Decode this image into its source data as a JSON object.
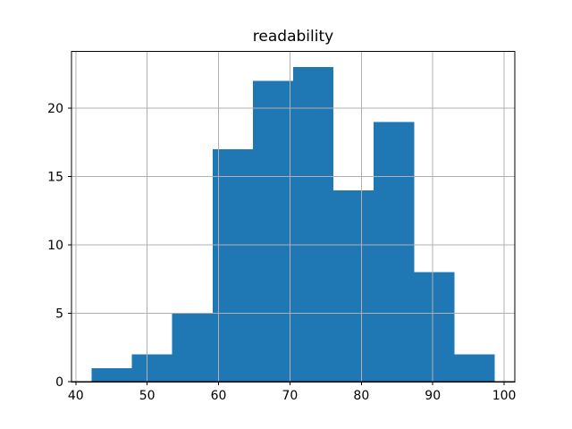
{
  "figure": {
    "background": "#ffffff"
  },
  "chart_data": {
    "type": "bar",
    "subtype": "histogram",
    "title": "readability",
    "xlabel": "",
    "ylabel": "",
    "bin_edges": [
      42.22,
      47.87,
      53.51,
      59.16,
      64.8,
      70.45,
      76.09,
      81.74,
      87.38,
      93.03,
      98.67
    ],
    "counts": [
      1,
      2,
      5,
      17,
      22,
      23,
      14,
      19,
      8,
      2
    ],
    "xticks": [
      40,
      50,
      60,
      70,
      80,
      90,
      100
    ],
    "yticks": [
      0,
      5,
      10,
      15,
      20
    ],
    "xlim": [
      39.4,
      101.49
    ],
    "ylim": [
      0,
      24.15
    ],
    "grid": true,
    "grid_over_bars": true,
    "legend": null,
    "bar_color": "#1f77b4",
    "grid_color": "#b0b0b0",
    "axis_color": "#000000",
    "text_color": "#000000",
    "plot_background": "#ffffff"
  }
}
